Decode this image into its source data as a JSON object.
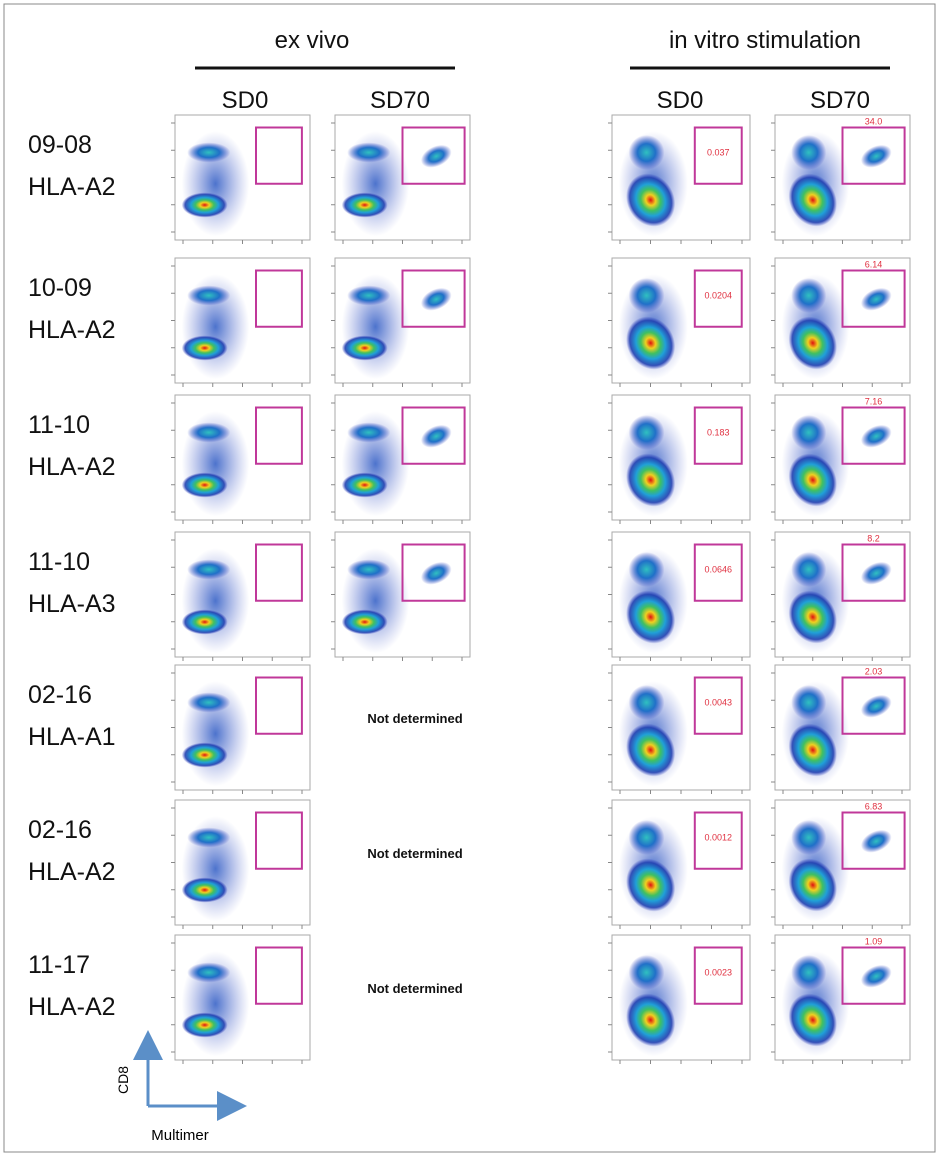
{
  "header": {
    "groups": [
      {
        "title": "ex vivo",
        "columns": [
          "SD0",
          "SD70"
        ]
      },
      {
        "title": "in vitro stimulation",
        "columns": [
          "SD0",
          "SD70"
        ]
      }
    ]
  },
  "rows": [
    {
      "sample": "09-08",
      "allele": "HLA-A2",
      "in_vitro_gates": [
        "0.037",
        "34.0"
      ]
    },
    {
      "sample": "10-09",
      "allele": "HLA-A2",
      "in_vitro_gates": [
        "0.0204",
        "6.14"
      ]
    },
    {
      "sample": "11-10",
      "allele": "HLA-A2",
      "in_vitro_gates": [
        "0.183",
        "7.16"
      ]
    },
    {
      "sample": "11-10",
      "allele": "HLA-A3",
      "in_vitro_gates": [
        "0.0646",
        "8.2"
      ]
    },
    {
      "sample": "02-16",
      "allele": "HLA-A1",
      "ex_vivo_sd70": "Not determined",
      "in_vitro_gates": [
        "0.0043",
        "2.03"
      ]
    },
    {
      "sample": "02-16",
      "allele": "HLA-A2",
      "ex_vivo_sd70": "Not determined",
      "in_vitro_gates": [
        "0.0012",
        "6.83"
      ]
    },
    {
      "sample": "11-17",
      "allele": "HLA-A2",
      "ex_vivo_sd70": "Not determined",
      "in_vitro_gates": [
        "0.0023",
        "1.09"
      ]
    }
  ],
  "axes": {
    "y": "CD8",
    "x": "Multimer"
  }
}
